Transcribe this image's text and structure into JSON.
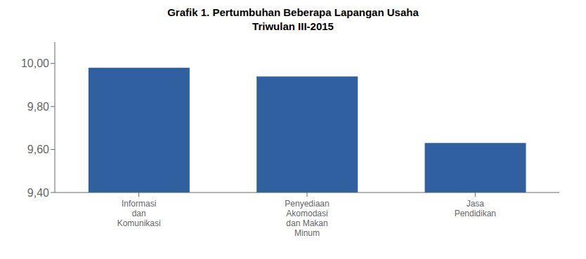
{
  "chart_data": {
    "type": "bar",
    "title": "Grafik 1. Pertumbuhan Beberapa Lapangan Usaha",
    "subtitle": "Triwulan III-2015",
    "categories": [
      "Informasi\ndan\nKomunikasi",
      "Penyediaan\nAkomodasi\ndan Makan\nMinum",
      "Jasa\nPendidikan"
    ],
    "values": [
      9.98,
      9.94,
      9.63
    ],
    "color": "#3060A0",
    "ylim": [
      9.4,
      10.1
    ],
    "yticks": [
      {
        "value": 9.4,
        "label": "9,40"
      },
      {
        "value": 9.6,
        "label": "9,60"
      },
      {
        "value": 9.8,
        "label": "9,80"
      },
      {
        "value": 10.0,
        "label": "10,00"
      }
    ],
    "grid": false
  }
}
